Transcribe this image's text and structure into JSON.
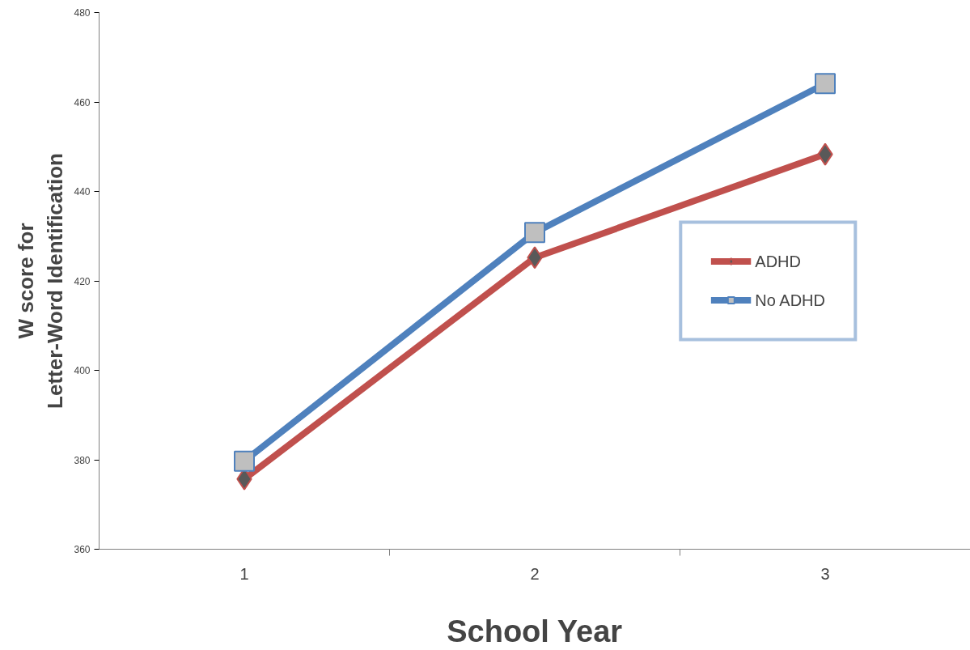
{
  "chart_data": {
    "type": "line",
    "xlabel": "School Year",
    "ylabel": "W score for\nLetter-Word Identification",
    "categories": [
      "1",
      "2",
      "3"
    ],
    "series": [
      {
        "name": "ADHD",
        "color": "#c0504d",
        "marker": "diamond",
        "values": [
          375.7,
          425.2,
          448.3
        ]
      },
      {
        "name": "No ADHD",
        "color": "#4f81bd",
        "marker": "square",
        "values": [
          379.7,
          430.8,
          464.1
        ]
      }
    ],
    "ylim": [
      360,
      480
    ],
    "yticks": [
      360,
      380,
      400,
      420,
      440,
      460,
      480
    ],
    "grid": false,
    "legend": "right"
  }
}
